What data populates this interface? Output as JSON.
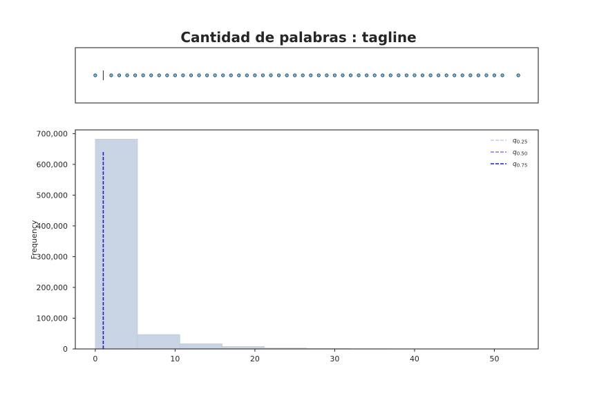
{
  "chart_data": [
    {
      "type": "boxplot",
      "title": "Cantidad de palabras : tagline",
      "points": [
        0,
        2,
        3,
        4,
        5,
        6,
        7,
        8,
        9,
        10,
        11,
        12,
        13,
        14,
        15,
        16,
        17,
        18,
        19,
        20,
        21,
        22,
        23,
        24,
        25,
        26,
        27,
        28,
        29,
        30,
        31,
        32,
        33,
        34,
        35,
        36,
        37,
        38,
        39,
        40,
        41,
        42,
        43,
        44,
        45,
        46,
        47,
        48,
        49,
        50,
        51,
        53
      ],
      "median": 1,
      "xlim": [
        -2.5,
        55.5
      ],
      "colors": {
        "point_fill": "#7ab8d6",
        "point_edge": "#1f3a55"
      }
    },
    {
      "type": "histogram",
      "xlabel": "",
      "ylabel": "Frequency",
      "bins": [
        {
          "x0": 0.0,
          "x1": 5.3,
          "value": 682000
        },
        {
          "x0": 5.3,
          "x1": 10.6,
          "value": 47000
        },
        {
          "x0": 10.6,
          "x1": 15.9,
          "value": 17000
        },
        {
          "x0": 15.9,
          "x1": 21.2,
          "value": 8000
        },
        {
          "x0": 21.2,
          "x1": 26.5,
          "value": 3000
        },
        {
          "x0": 26.5,
          "x1": 31.8,
          "value": 1200
        },
        {
          "x0": 31.8,
          "x1": 37.1,
          "value": 600
        },
        {
          "x0": 37.1,
          "x1": 42.4,
          "value": 300
        },
        {
          "x0": 42.4,
          "x1": 47.7,
          "value": 150
        },
        {
          "x0": 47.7,
          "x1": 53.0,
          "value": 80
        }
      ],
      "xlim": [
        -2.5,
        55.5
      ],
      "ylim": [
        0,
        712000
      ],
      "xticks": [
        0,
        10,
        20,
        30,
        40,
        50
      ],
      "xtick_labels": [
        "0",
        "10",
        "20",
        "30",
        "40",
        "50"
      ],
      "yticks": [
        0,
        100000,
        200000,
        300000,
        400000,
        500000,
        600000,
        700000
      ],
      "ytick_labels": [
        "0",
        "100,000",
        "200,000",
        "300,000",
        "400,000",
        "500,000",
        "600,000",
        "700,000"
      ],
      "quantiles": [
        {
          "name": "q0.25",
          "label_q": "q",
          "label_sub": "0.25",
          "value": 1,
          "top": 640000,
          "color": "#c8c8f0"
        },
        {
          "name": "q0.50",
          "label_q": "q",
          "label_sub": "0.50",
          "value": 1,
          "top": 640000,
          "color": "#7a7aee"
        },
        {
          "name": "q0.75",
          "label_q": "q",
          "label_sub": "0.75",
          "value": 1,
          "top": 640000,
          "color": "#1a1adf"
        }
      ],
      "legend_position": "top-right",
      "colors": {
        "bar": "#c8d4e4",
        "bar_edge": "#b4cbe0"
      }
    }
  ]
}
